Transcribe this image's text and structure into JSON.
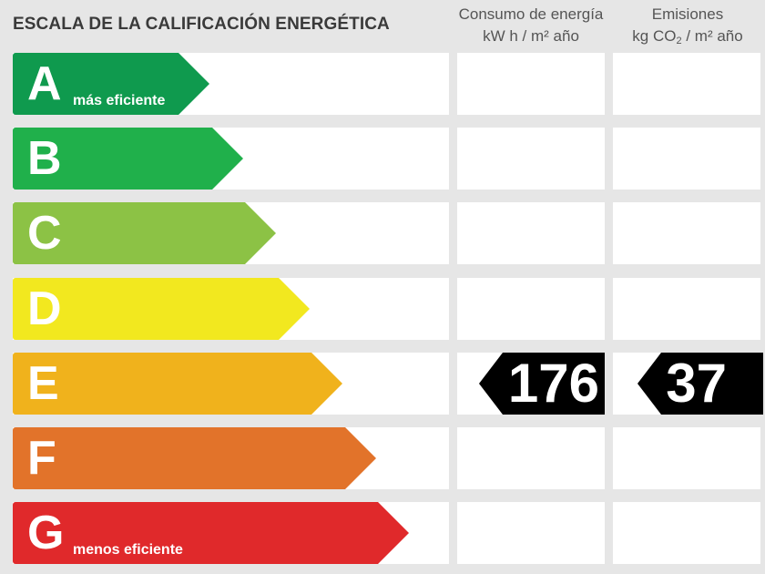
{
  "title": "ESCALA DE LA CALIFICACIÓN ENERGÉTICA",
  "columns": {
    "energy": {
      "line1": "Consumo de energía",
      "line2": "kW h  / m² año"
    },
    "emissions": {
      "line1": "Emisiones",
      "line2_pre": "kg CO",
      "line2_sub": "2",
      "line2_post": "  / m² año"
    }
  },
  "ratings": [
    {
      "letter": "A",
      "label": "más eficiente",
      "color": "#0f9a4e"
    },
    {
      "letter": "B",
      "label": "",
      "color": "#20b04b"
    },
    {
      "letter": "C",
      "label": "",
      "color": "#8cc245"
    },
    {
      "letter": "D",
      "label": "",
      "color": "#f2e81f"
    },
    {
      "letter": "E",
      "label": "",
      "color": "#f0b21c"
    },
    {
      "letter": "F",
      "label": "",
      "color": "#e2732a"
    },
    {
      "letter": "G",
      "label": "menos eficiente",
      "color": "#e0292b"
    }
  ],
  "current": {
    "rating": "E",
    "energy_value": "176",
    "emissions_value": "37"
  }
}
